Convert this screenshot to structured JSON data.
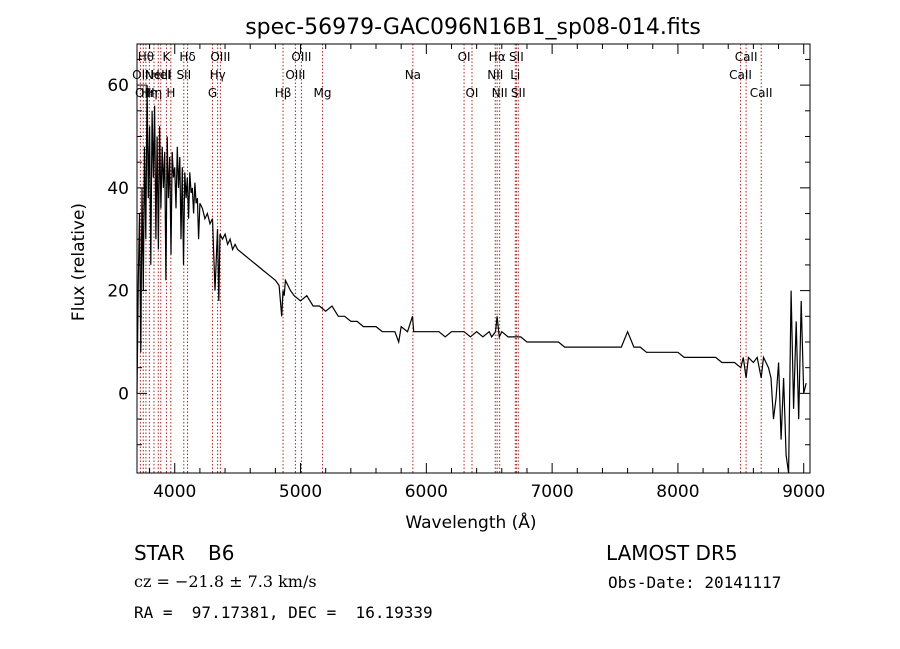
{
  "chart_data": {
    "type": "line",
    "title": "spec-56979-GAC096N16B1_sp08-014.fits",
    "xlabel": "Wavelength (Å)",
    "ylabel": "Flux (relative)",
    "xlim": [
      3700,
      9050
    ],
    "ylim": [
      -15.5,
      68
    ],
    "xticks": [
      4000,
      5000,
      6000,
      7000,
      8000,
      9000
    ],
    "yticks": [
      0,
      20,
      40,
      60
    ],
    "grid": false,
    "line_color": "#000000",
    "marker_color": "#b22222",
    "series": [
      {
        "x": [
          3700,
          3710,
          3720,
          3730,
          3740,
          3750,
          3760,
          3770,
          3780,
          3790,
          3800,
          3810,
          3820,
          3830,
          3840,
          3850,
          3860,
          3870,
          3880,
          3890,
          3900,
          3910,
          3920,
          3930,
          3940,
          3950,
          3960,
          3970,
          3980,
          3990,
          4000,
          4010,
          4020,
          4030,
          4040,
          4050,
          4060,
          4070,
          4080,
          4090,
          4100,
          4110,
          4120,
          4130,
          4140,
          4150,
          4160,
          4170,
          4180,
          4190,
          4200,
          4220,
          4240,
          4260,
          4280,
          4300,
          4320,
          4340,
          4350,
          4360,
          4380,
          4400,
          4420,
          4440,
          4460,
          4480,
          4500,
          4550,
          4600,
          4650,
          4700,
          4750,
          4800,
          4830,
          4850,
          4861,
          4870,
          4880,
          4900,
          4920,
          4950,
          5000,
          5050,
          5100,
          5150,
          5200,
          5250,
          5300,
          5350,
          5400,
          5450,
          5500,
          5550,
          5600,
          5650,
          5700,
          5750,
          5780,
          5800,
          5850,
          5890,
          5900,
          5950,
          6000,
          6050,
          6100,
          6150,
          6200,
          6250,
          6300,
          6350,
          6400,
          6450,
          6500,
          6520,
          6550,
          6563,
          6580,
          6600,
          6650,
          6700,
          6750,
          6800,
          6850,
          6900,
          6950,
          7000,
          7050,
          7100,
          7150,
          7200,
          7250,
          7300,
          7350,
          7400,
          7450,
          7500,
          7550,
          7600,
          7650,
          7700,
          7750,
          7800,
          7850,
          7900,
          7950,
          8000,
          8050,
          8100,
          8150,
          8200,
          8250,
          8300,
          8350,
          8400,
          8450,
          8500,
          8520,
          8542,
          8560,
          8600,
          8630,
          8662,
          8680,
          8700,
          8720,
          8740,
          8760,
          8780,
          8800,
          8820,
          8840,
          8860,
          8880,
          8900,
          8920,
          8940,
          8960,
          8980,
          9000,
          9020
        ],
        "values": [
          0,
          22,
          35,
          8,
          40,
          20,
          48,
          30,
          60,
          38,
          52,
          25,
          55,
          42,
          56,
          30,
          50,
          28,
          52,
          36,
          48,
          40,
          47,
          22,
          50,
          38,
          46,
          27,
          47,
          42,
          44,
          36,
          48,
          40,
          46,
          30,
          44,
          25,
          43,
          38,
          42,
          34,
          43,
          39,
          40,
          35,
          41,
          37,
          38,
          30,
          37,
          36,
          34,
          35,
          33,
          34,
          20,
          32,
          18,
          31,
          30,
          31,
          29,
          30,
          28,
          29,
          28,
          27,
          26,
          25,
          24,
          23,
          22,
          21,
          15,
          20,
          19,
          22,
          21,
          20,
          19,
          18,
          19,
          17,
          17,
          16,
          17,
          15,
          15,
          14,
          14,
          13,
          13,
          13,
          12,
          12,
          12,
          10,
          13,
          12,
          15,
          12,
          12,
          12,
          12,
          12,
          11,
          12,
          12,
          12,
          11,
          12,
          11,
          12,
          11,
          12,
          15,
          11,
          12,
          11,
          11,
          11,
          10,
          10,
          10,
          10,
          10,
          10,
          9,
          9,
          9,
          9,
          9,
          9,
          9,
          9,
          9,
          9,
          12,
          9,
          9,
          8,
          8,
          8,
          8,
          8,
          8,
          7,
          7,
          7,
          7,
          7,
          7,
          6,
          6,
          6,
          5,
          7,
          3,
          7,
          6,
          7,
          3,
          7,
          6,
          5,
          3,
          -5,
          -1,
          6,
          -9,
          3,
          -12,
          -16,
          20,
          -3,
          14,
          -5,
          18,
          0,
          2
        ]
      }
    ],
    "lines": [
      {
        "wave": 3727,
        "label": "OII",
        "row": 2
      },
      {
        "wave": 3750,
        "label": "OII",
        "row": 3
      },
      {
        "wave": 3771,
        "label": "Hθ",
        "row": 1
      },
      {
        "wave": 3798,
        "label": "Hη",
        "row": 3
      },
      {
        "wave": 3835,
        "label": "Hη",
        "row": 3
      },
      {
        "wave": 3869,
        "label": "NeIII",
        "row": 2
      },
      {
        "wave": 3889,
        "label": "HeI",
        "row": 2
      },
      {
        "wave": 3934,
        "label": "K",
        "row": 1
      },
      {
        "wave": 3969,
        "label": "H",
        "row": 3
      },
      {
        "wave": 4072,
        "label": "SII",
        "row": 2
      },
      {
        "wave": 4102,
        "label": "Hδ",
        "row": 1
      },
      {
        "wave": 4300,
        "label": "G",
        "row": 3
      },
      {
        "wave": 4341,
        "label": "Hγ",
        "row": 2
      },
      {
        "wave": 4363,
        "label": "OIII",
        "row": 1
      },
      {
        "wave": 4861,
        "label": "Hβ",
        "row": 3
      },
      {
        "wave": 4959,
        "label": "OIII",
        "row": 2
      },
      {
        "wave": 5007,
        "label": "OIII",
        "row": 1
      },
      {
        "wave": 5175,
        "label": "Mg",
        "row": 3
      },
      {
        "wave": 5893,
        "label": "Na",
        "row": 2
      },
      {
        "wave": 6300,
        "label": "OI",
        "row": 1
      },
      {
        "wave": 6363,
        "label": "OI",
        "row": 3
      },
      {
        "wave": 6548,
        "label": "NII",
        "row": 2
      },
      {
        "wave": 6563,
        "label": "Hα",
        "row": 1
      },
      {
        "wave": 6583,
        "label": "NII",
        "row": 3
      },
      {
        "wave": 6707,
        "label": "Li",
        "row": 2
      },
      {
        "wave": 6716,
        "label": "SII",
        "row": 1
      },
      {
        "wave": 6731,
        "label": "SII",
        "row": 3
      },
      {
        "wave": 8498,
        "label": "CaII",
        "row": 2
      },
      {
        "wave": 8542,
        "label": "CaII",
        "row": 1
      },
      {
        "wave": 8662,
        "label": "CaII",
        "row": 3
      }
    ]
  },
  "info": {
    "class_label": "STAR",
    "subclass": "B6",
    "survey": "LAMOST DR5",
    "cz": "cz = −21.8 ± 7.3 km/s",
    "obs_date": "Obs-Date: 20141117",
    "coords": "RA =  97.17381, DEC =  16.19339"
  }
}
